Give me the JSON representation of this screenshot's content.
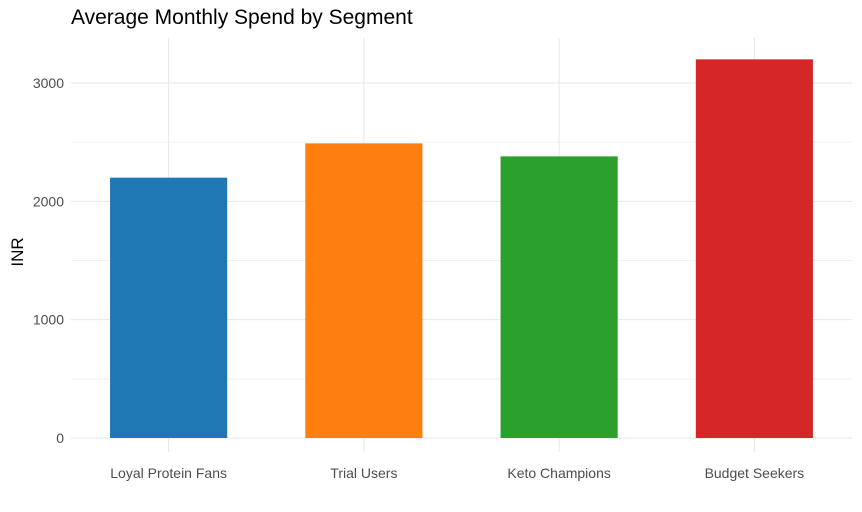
{
  "chart_data": {
    "type": "bar",
    "title": "Average Monthly Spend by Segment",
    "xlabel": "",
    "ylabel": "INR",
    "categories": [
      "Loyal Protein Fans",
      "Trial Users",
      "Keto Champions",
      "Budget Seekers"
    ],
    "values": [
      2200,
      2490,
      2380,
      3200
    ],
    "colors": [
      "#1f77b4",
      "#ff7f0e",
      "#2ca02c",
      "#d62728"
    ],
    "ylim": [
      0,
      3400
    ],
    "yticks": [
      0,
      1000,
      2000,
      3000
    ],
    "grid": true,
    "legend": "none"
  }
}
